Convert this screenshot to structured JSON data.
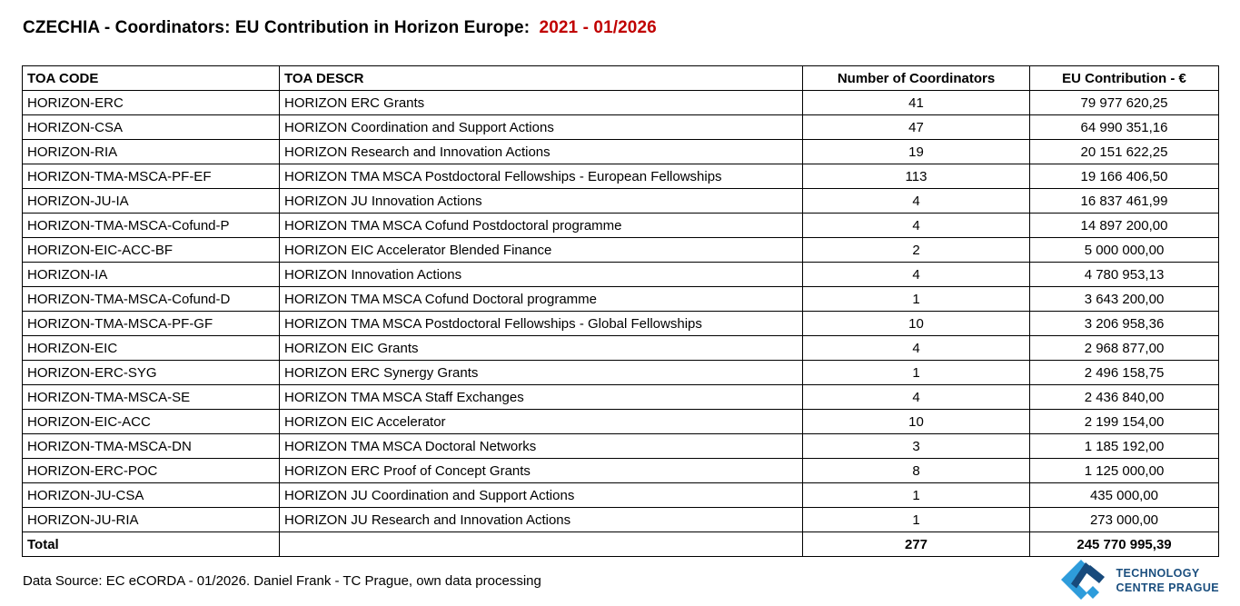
{
  "title": {
    "main": "CZECHIA - Coordinators: EU Contribution in Horizon Europe:",
    "period": "2021 - 01/2026",
    "period_color": "#C00000"
  },
  "table": {
    "headers": [
      "TOA CODE",
      "TOA DESCR",
      "Number of Coordinators",
      "EU Contribution - €"
    ],
    "rows": [
      {
        "code": "HORIZON-ERC",
        "descr": "HORIZON ERC Grants",
        "coordinators": "41",
        "contribution": "79 977 620,25"
      },
      {
        "code": "HORIZON-CSA",
        "descr": "HORIZON Coordination and Support Actions",
        "coordinators": "47",
        "contribution": "64 990 351,16"
      },
      {
        "code": "HORIZON-RIA",
        "descr": "HORIZON  Research and Innovation Actions",
        "coordinators": "19",
        "contribution": "20 151 622,25"
      },
      {
        "code": "HORIZON-TMA-MSCA-PF-EF",
        "descr": "HORIZON TMA MSCA Postdoctoral Fellowships - European Fellowships",
        "coordinators": "113",
        "contribution": "19 166 406,50"
      },
      {
        "code": "HORIZON-JU-IA",
        "descr": "HORIZON JU Innovation Actions",
        "coordinators": "4",
        "contribution": "16 837 461,99"
      },
      {
        "code": "HORIZON-TMA-MSCA-Cofund-P",
        "descr": "HORIZON TMA MSCA Cofund Postdoctoral programme",
        "coordinators": "4",
        "contribution": "14 897 200,00"
      },
      {
        "code": "HORIZON-EIC-ACC-BF",
        "descr": "HORIZON EIC Accelerator Blended Finance",
        "coordinators": "2",
        "contribution": "5 000 000,00"
      },
      {
        "code": "HORIZON-IA",
        "descr": "HORIZON Innovation Actions",
        "coordinators": "4",
        "contribution": "4 780 953,13"
      },
      {
        "code": "HORIZON-TMA-MSCA-Cofund-D",
        "descr": "HORIZON TMA MSCA Cofund Doctoral programme",
        "coordinators": "1",
        "contribution": "3 643 200,00"
      },
      {
        "code": "HORIZON-TMA-MSCA-PF-GF",
        "descr": "HORIZON TMA MSCA Postdoctoral Fellowships - Global Fellowships",
        "coordinators": "10",
        "contribution": "3 206 958,36"
      },
      {
        "code": "HORIZON-EIC",
        "descr": "HORIZON EIC Grants",
        "coordinators": "4",
        "contribution": "2 968 877,00"
      },
      {
        "code": "HORIZON-ERC-SYG",
        "descr": "HORIZON ERC Synergy Grants",
        "coordinators": "1",
        "contribution": "2 496 158,75"
      },
      {
        "code": "HORIZON-TMA-MSCA-SE",
        "descr": "HORIZON TMA MSCA Staff Exchanges",
        "coordinators": "4",
        "contribution": "2 436 840,00"
      },
      {
        "code": "HORIZON-EIC-ACC",
        "descr": "HORIZON EIC Accelerator",
        "coordinators": "10",
        "contribution": "2 199 154,00"
      },
      {
        "code": "HORIZON-TMA-MSCA-DN",
        "descr": "HORIZON TMA MSCA Doctoral Networks",
        "coordinators": "3",
        "contribution": "1 185 192,00"
      },
      {
        "code": "HORIZON-ERC-POC",
        "descr": "HORIZON ERC Proof of Concept Grants",
        "coordinators": "8",
        "contribution": "1 125 000,00"
      },
      {
        "code": "HORIZON-JU-CSA",
        "descr": "HORIZON JU Coordination and Support Actions",
        "coordinators": "1",
        "contribution": "435 000,00"
      },
      {
        "code": "HORIZON-JU-RIA",
        "descr": "HORIZON JU Research and Innovation Actions",
        "coordinators": "1",
        "contribution": "273 000,00"
      }
    ],
    "total": {
      "label": "Total",
      "descr": "",
      "coordinators": "277",
      "contribution": "245 770 995,39"
    }
  },
  "footer": {
    "source": "Data Source: EC eCORDA - 01/2026. Daniel Frank - TC Prague, own data processing"
  },
  "logo": {
    "line1": "TECHNOLOGY",
    "line2": "CENTRE PRAGUE",
    "light_blue": "#2E9CDB",
    "dark_blue": "#174A7C",
    "text_color": "#1A4E7E"
  }
}
